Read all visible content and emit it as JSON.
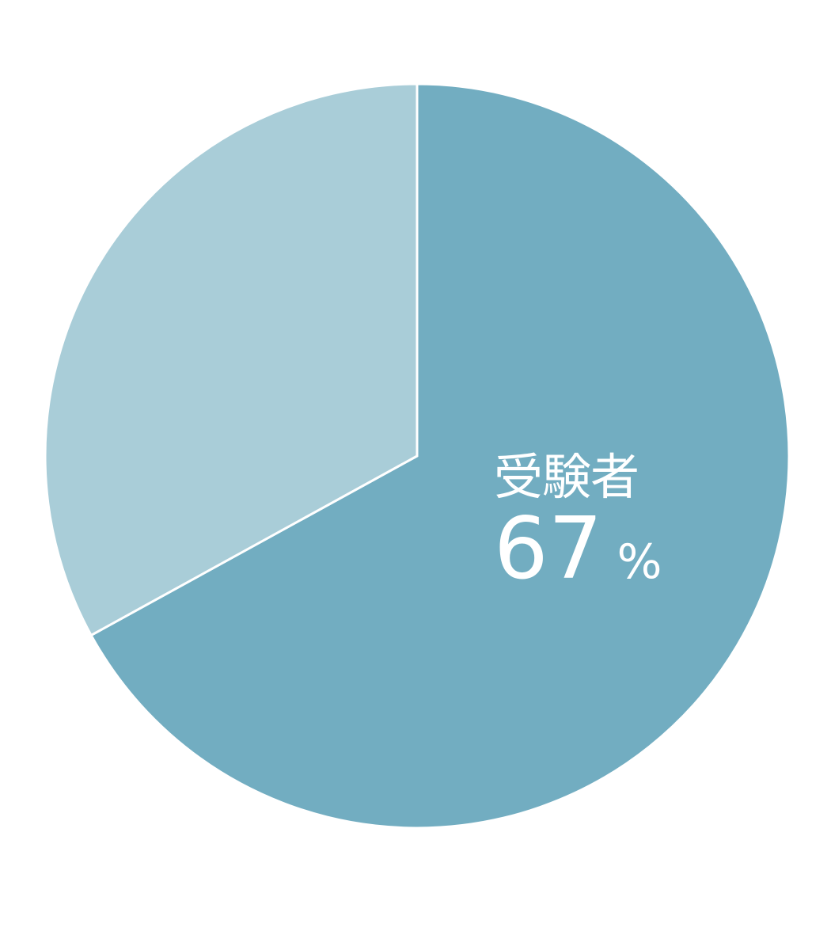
{
  "chart_data": {
    "type": "pie",
    "start": "top",
    "direction": "clockwise",
    "slices": [
      {
        "label": "受験者",
        "value": 67,
        "unit": "%",
        "color": "#72adc1"
      },
      {
        "value": 33,
        "color": "#a9cdd8"
      }
    ],
    "separator_color": "#ffffff"
  }
}
